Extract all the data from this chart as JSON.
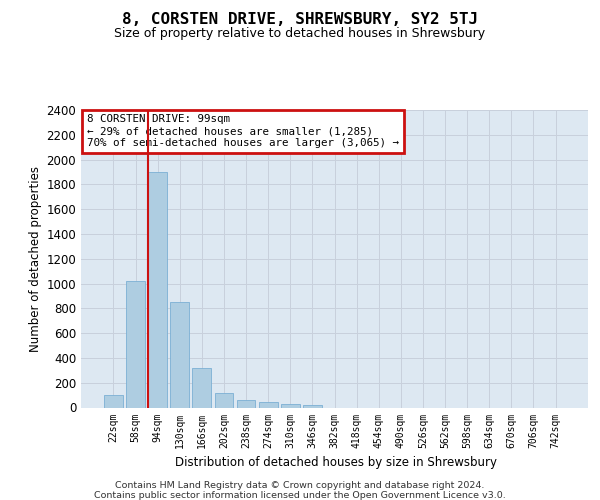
{
  "title": "8, CORSTEN DRIVE, SHREWSBURY, SY2 5TJ",
  "subtitle": "Size of property relative to detached houses in Shrewsbury",
  "xlabel": "Distribution of detached houses by size in Shrewsbury",
  "ylabel": "Number of detached properties",
  "categories": [
    "22sqm",
    "58sqm",
    "94sqm",
    "130sqm",
    "166sqm",
    "202sqm",
    "238sqm",
    "274sqm",
    "310sqm",
    "346sqm",
    "382sqm",
    "418sqm",
    "454sqm",
    "490sqm",
    "526sqm",
    "562sqm",
    "598sqm",
    "634sqm",
    "670sqm",
    "706sqm",
    "742sqm"
  ],
  "bar_heights": [
    100,
    1020,
    1900,
    855,
    320,
    120,
    58,
    48,
    28,
    18,
    0,
    0,
    0,
    0,
    0,
    0,
    0,
    0,
    0,
    0,
    0
  ],
  "bar_color": "#aecde1",
  "bar_edge_color": "#7bafd4",
  "vline_color": "#cc1111",
  "annotation_line1": "8 CORSTEN DRIVE: 99sqm",
  "annotation_line2": "← 29% of detached houses are smaller (1,285)",
  "annotation_line3": "70% of semi-detached houses are larger (3,065) →",
  "annotation_box_edgecolor": "#cc1111",
  "ylim": [
    0,
    2400
  ],
  "yticks": [
    0,
    200,
    400,
    600,
    800,
    1000,
    1200,
    1400,
    1600,
    1800,
    2000,
    2200,
    2400
  ],
  "grid_color": "#c8d0dc",
  "bg_color": "#dde8f2",
  "footer1": "Contains HM Land Registry data © Crown copyright and database right 2024.",
  "footer2": "Contains public sector information licensed under the Open Government Licence v3.0."
}
